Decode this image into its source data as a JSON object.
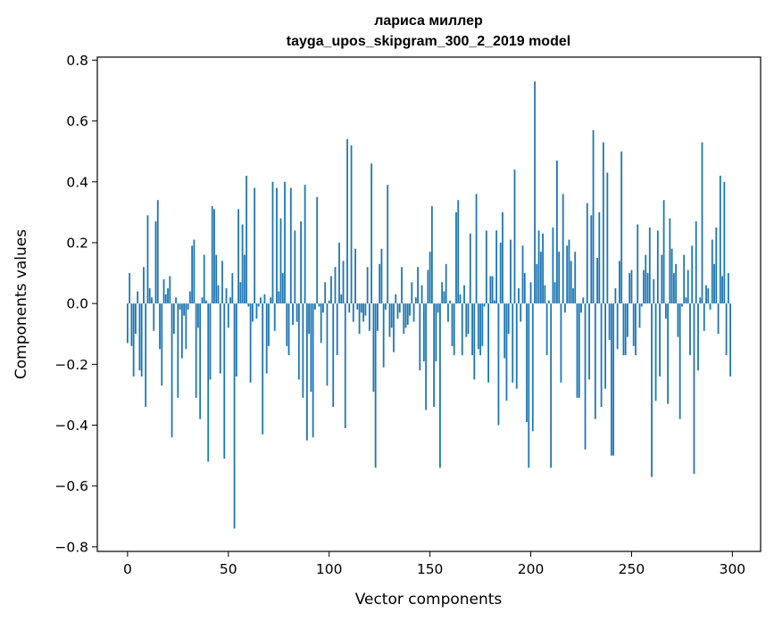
{
  "chart_data": {
    "type": "bar",
    "title": "лариса миллер",
    "subtitle": "tayga_upos_skipgram_300_2_2019 model",
    "xlabel": "Vector components",
    "ylabel": "Components values",
    "xlim": [
      -15,
      314
    ],
    "ylim": [
      -0.815,
      0.81
    ],
    "xticks": [
      0,
      50,
      100,
      150,
      200,
      250,
      300
    ],
    "xtick_labels": [
      "0",
      "50",
      "100",
      "150",
      "200",
      "250",
      "300"
    ],
    "yticks": [
      -0.8,
      -0.6,
      -0.4,
      -0.2,
      0.0,
      0.2,
      0.4,
      0.6,
      0.8
    ],
    "ytick_labels": [
      "−0.8",
      "−0.6",
      "−0.4",
      "−0.2",
      "0.0",
      "0.2",
      "0.4",
      "0.6",
      "0.8"
    ],
    "bar_color": "#1f77b4",
    "x": [
      0,
      1,
      2,
      3,
      4,
      5,
      6,
      7,
      8,
      9,
      10,
      11,
      12,
      13,
      14,
      15,
      16,
      17,
      18,
      19,
      20,
      21,
      22,
      23,
      24,
      25,
      26,
      27,
      28,
      29,
      30,
      31,
      32,
      33,
      34,
      35,
      36,
      37,
      38,
      39,
      40,
      41,
      42,
      43,
      44,
      45,
      46,
      47,
      48,
      49,
      50,
      51,
      52,
      53,
      54,
      55,
      56,
      57,
      58,
      59,
      60,
      61,
      62,
      63,
      64,
      65,
      66,
      67,
      68,
      69,
      70,
      71,
      72,
      73,
      74,
      75,
      76,
      77,
      78,
      79,
      80,
      81,
      82,
      83,
      84,
      85,
      86,
      87,
      88,
      89,
      90,
      91,
      92,
      93,
      94,
      95,
      96,
      97,
      98,
      99,
      100,
      101,
      102,
      103,
      104,
      105,
      106,
      107,
      108,
      109,
      110,
      111,
      112,
      113,
      114,
      115,
      116,
      117,
      118,
      119,
      120,
      121,
      122,
      123,
      124,
      125,
      126,
      127,
      128,
      129,
      130,
      131,
      132,
      133,
      134,
      135,
      136,
      137,
      138,
      139,
      140,
      141,
      142,
      143,
      144,
      145,
      146,
      147,
      148,
      149,
      150,
      151,
      152,
      153,
      154,
      155,
      156,
      157,
      158,
      159,
      160,
      161,
      162,
      163,
      164,
      165,
      166,
      167,
      168,
      169,
      170,
      171,
      172,
      173,
      174,
      175,
      176,
      177,
      178,
      179,
      180,
      181,
      182,
      183,
      184,
      185,
      186,
      187,
      188,
      189,
      190,
      191,
      192,
      193,
      194,
      195,
      196,
      197,
      198,
      199,
      200,
      201,
      202,
      203,
      204,
      205,
      206,
      207,
      208,
      209,
      210,
      211,
      212,
      213,
      214,
      215,
      216,
      217,
      218,
      219,
      220,
      221,
      222,
      223,
      224,
      225,
      226,
      227,
      228,
      229,
      230,
      231,
      232,
      233,
      234,
      235,
      236,
      237,
      238,
      239,
      240,
      241,
      242,
      243,
      244,
      245,
      246,
      247,
      248,
      249,
      250,
      251,
      252,
      253,
      254,
      255,
      256,
      257,
      258,
      259,
      260,
      261,
      262,
      263,
      264,
      265,
      266,
      267,
      268,
      269,
      270,
      271,
      272,
      273,
      274,
      275,
      276,
      277,
      278,
      279,
      280,
      281,
      282,
      283,
      284,
      285,
      286,
      287,
      288,
      289,
      290,
      291,
      292,
      293,
      294,
      295,
      296,
      297,
      298,
      299
    ],
    "values": [
      -0.13,
      0.1,
      -0.14,
      -0.24,
      -0.1,
      0.04,
      -0.22,
      -0.24,
      0.12,
      -0.34,
      0.29,
      0.05,
      0.02,
      -0.09,
      0.27,
      0.34,
      -0.15,
      -0.27,
      0.08,
      0.03,
      0.05,
      0.09,
      -0.44,
      -0.1,
      0.02,
      -0.31,
      -0.02,
      -0.18,
      -0.04,
      -0.15,
      -0.02,
      0.04,
      0.19,
      0.21,
      -0.31,
      -0.08,
      -0.38,
      0.02,
      0.16,
      0.01,
      -0.52,
      -0.25,
      0.32,
      0.31,
      0.16,
      0.06,
      -0.23,
      0.14,
      -0.51,
      0.05,
      -0.08,
      0.02,
      0.1,
      -0.74,
      -0.24,
      0.31,
      0.07,
      0.26,
      0.16,
      0.42,
      -0.01,
      -0.26,
      -0.06,
      0.38,
      -0.05,
      -0.01,
      0.02,
      -0.43,
      0.03,
      -0.23,
      -0.14,
      0.02,
      0.4,
      -0.09,
      0.38,
      0.04,
      0.28,
      0.1,
      0.4,
      -0.14,
      -0.17,
      0.38,
      -0.07,
      0.24,
      -0.06,
      -0.25,
      0.27,
      -0.31,
      0.39,
      -0.45,
      -0.1,
      -0.29,
      -0.44,
      -0.02,
      0.35,
      -0.01,
      -0.13,
      -0.03,
      0.07,
      -0.27,
      0.01,
      0.09,
      -0.34,
      0.12,
      -0.17,
      0.2,
      0.03,
      0.14,
      -0.41,
      0.54,
      -0.03,
      0.52,
      -0.06,
      0.18,
      -0.02,
      -0.1,
      -0.03,
      -0.06,
      -0.04,
      0.12,
      -0.09,
      0.46,
      -0.29,
      -0.54,
      -0.09,
      0.13,
      0.18,
      -0.21,
      -0.02,
      0.39,
      -0.11,
      -0.08,
      -0.16,
      0.03,
      -0.05,
      -0.03,
      0.12,
      -0.1,
      -0.08,
      -0.07,
      -0.04,
      0.07,
      -0.06,
      0.02,
      0.12,
      -0.22,
      0.06,
      -0.19,
      -0.35,
      0.11,
      0.17,
      0.32,
      -0.34,
      -0.19,
      -0.03,
      -0.54,
      0.07,
      0.04,
      0.13,
      -0.06,
      0.01,
      -0.14,
      -0.17,
      0.3,
      0.34,
      0.03,
      -0.17,
      0.06,
      -0.11,
      -0.1,
      0.23,
      -0.17,
      -0.25,
      0.36,
      -0.15,
      -0.17,
      -0.14,
      -0.01,
      0.24,
      -0.26,
      0.09,
      0.09,
      0.01,
      0.24,
      -0.4,
      0.2,
      0.3,
      -0.18,
      -0.32,
      -0.1,
      0.21,
      -0.26,
      0.44,
      -0.28,
      0.05,
      -0.06,
      0.19,
      0.1,
      -0.39,
      -0.54,
      0.07,
      -0.42,
      0.73,
      0.13,
      0.24,
      0.17,
      0.23,
      0.06,
      -0.17,
      0.01,
      -0.54,
      0.25,
      0.07,
      0.47,
      0.17,
      -0.26,
      0.36,
      -0.03,
      0.19,
      0.21,
      0.14,
      0.05,
      0.17,
      -0.31,
      -0.31,
      -0.03,
      0.02,
      -0.48,
      0.33,
      -0.25,
      0.29,
      0.57,
      -0.38,
      0.15,
      0.3,
      -0.34,
      0.53,
      -0.28,
      0.43,
      -0.12,
      -0.5,
      -0.5,
      0.05,
      -0.15,
      0.14,
      0.5,
      -0.17,
      -0.17,
      -0.11,
      0.1,
      0.11,
      -0.14,
      -0.17,
      0.26,
      -0.08,
      -0.01,
      0.11,
      0.16,
      0.1,
      0.25,
      -0.57,
      0.08,
      -0.32,
      0.24,
      -0.24,
      0.16,
      0.34,
      -0.05,
      -0.33,
      0.28,
      0.18,
      0.1,
      0.13,
      -0.11,
      -0.38,
      -0.01,
      0.16,
      0.02,
      0.11,
      -0.17,
      0.19,
      -0.56,
      0.27,
      -0.22,
      0.02,
      0.53,
      -0.09,
      0.06,
      0.05,
      -0.02,
      0.21,
      0.13,
      0.25,
      -0.1,
      0.42,
      0.09,
      0.4,
      -0.17,
      0.1,
      -0.24
    ]
  }
}
